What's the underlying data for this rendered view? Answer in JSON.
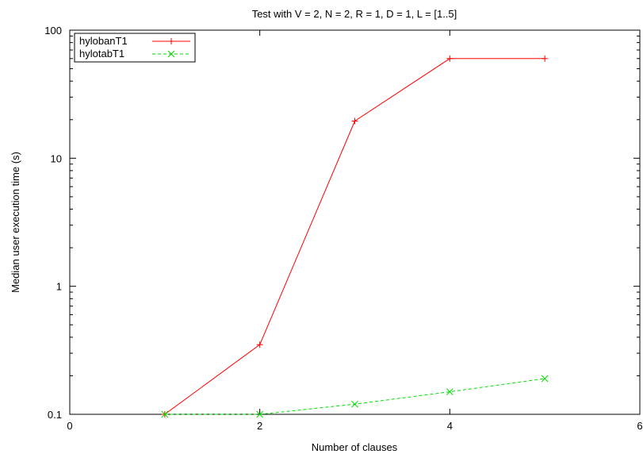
{
  "chart_data": {
    "type": "line",
    "title": "Test with V = 2, N = 2, R = 1, D = 1, L = [1..5]",
    "xlabel": "Number of clauses",
    "ylabel": "Median user execution time (s)",
    "xlim": [
      0,
      6
    ],
    "ylim": [
      0.1,
      100
    ],
    "yscale": "log",
    "grid": false,
    "legend_position": "top-left",
    "x_ticks": [
      0,
      2,
      4,
      6
    ],
    "x_tick_labels": [
      "0",
      "2",
      "4",
      "6"
    ],
    "y_ticks": [
      0.1,
      1,
      10,
      100
    ],
    "y_tick_labels": [
      "0.1",
      "1",
      "10",
      "100"
    ],
    "series": [
      {
        "name": "hylobanT1",
        "color": "#ff0000",
        "marker": "plus",
        "dashed": false,
        "x": [
          1,
          2,
          3,
          4,
          5
        ],
        "y": [
          0.1,
          0.35,
          19.5,
          60,
          60
        ]
      },
      {
        "name": "hylotabT1",
        "color": "#00dd00",
        "marker": "cross",
        "dashed": true,
        "x": [
          1,
          2,
          3,
          4,
          5
        ],
        "y": [
          0.1,
          0.1,
          0.12,
          0.15,
          0.19
        ]
      }
    ]
  }
}
